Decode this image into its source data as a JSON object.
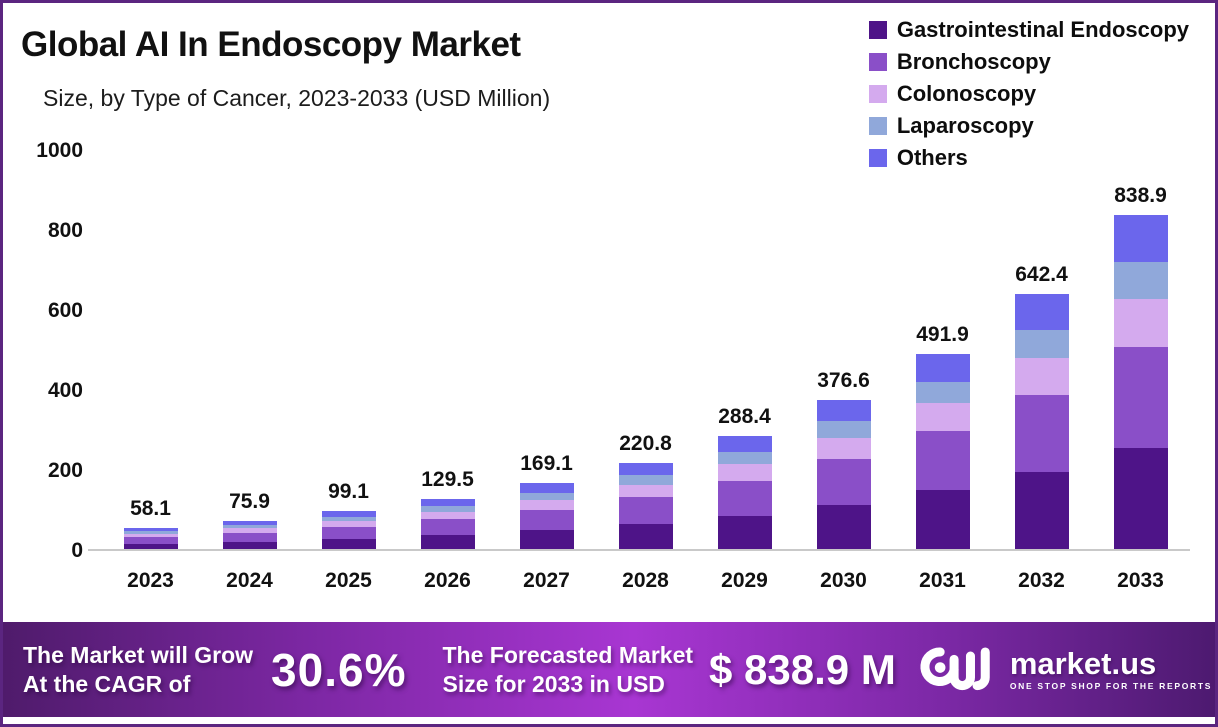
{
  "header": {
    "title": "Global AI In Endoscopy Market",
    "subtitle": "Size, by Type of Cancer, 2023-2033 (USD Million)"
  },
  "chart_data": {
    "type": "bar",
    "stacked": true,
    "title": "Global AI In Endoscopy Market",
    "subtitle": "Size, by Type of Cancer, 2023-2033 (USD Million)",
    "unit": "USD Million",
    "categories": [
      "2023",
      "2024",
      "2025",
      "2026",
      "2027",
      "2028",
      "2029",
      "2030",
      "2031",
      "2032",
      "2033"
    ],
    "totals": [
      "58.1",
      "75.9",
      "99.1",
      "129.5",
      "169.1",
      "220.8",
      "288.4",
      "376.6",
      "491.9",
      "642.4",
      "838.9"
    ],
    "series": [
      {
        "name": "Gastrointestinal Endoscopy",
        "color": "#4e1488",
        "values": [
          17.9,
          23.4,
          30.5,
          39.9,
          52.1,
          68.0,
          88.8,
          116.0,
          151.5,
          197.9,
          258.4
        ]
      },
      {
        "name": "Bronchoscopy",
        "color": "#8a4fc8",
        "values": [
          17.4,
          22.8,
          29.7,
          38.9,
          50.7,
          66.2,
          86.5,
          113.0,
          147.6,
          192.7,
          251.7
        ]
      },
      {
        "name": "Colonoscopy",
        "color": "#d4aaee",
        "values": [
          8.3,
          10.9,
          14.2,
          18.5,
          24.2,
          31.6,
          41.2,
          53.9,
          70.3,
          91.9,
          120.0
        ]
      },
      {
        "name": "Laparoscopy",
        "color": "#90a8da",
        "values": [
          6.4,
          8.3,
          10.9,
          14.2,
          18.6,
          24.3,
          31.7,
          41.4,
          54.1,
          70.7,
          92.3
        ]
      },
      {
        "name": "Others",
        "color": "#6b66ec",
        "values": [
          8.1,
          10.6,
          13.8,
          18.0,
          23.5,
          30.7,
          40.1,
          52.4,
          68.4,
          89.3,
          116.6
        ]
      }
    ],
    "xlabel": "",
    "ylabel": "",
    "ylim": [
      0,
      1000
    ],
    "ytick_step": 200,
    "grid": false,
    "legend_position": "top-right"
  },
  "footer": {
    "cagr_label_line1": "The Market will Grow",
    "cagr_label_line2": "At the CAGR of",
    "cagr_value": "30.6%",
    "forecast_label_line1": "The Forecasted Market",
    "forecast_label_line2": "Size for 2033 in USD",
    "forecast_value": "$ 838.9 M",
    "brand_name": "market.us",
    "brand_tagline": "ONE STOP SHOP FOR THE REPORTS"
  },
  "colors": {
    "border": "#5b2580",
    "axis_line": "#c9c9c9",
    "text": "#111111",
    "banner_left": "#4f1b6b",
    "banner_center": "#a836d2",
    "banner_right": "#4d1a70"
  }
}
